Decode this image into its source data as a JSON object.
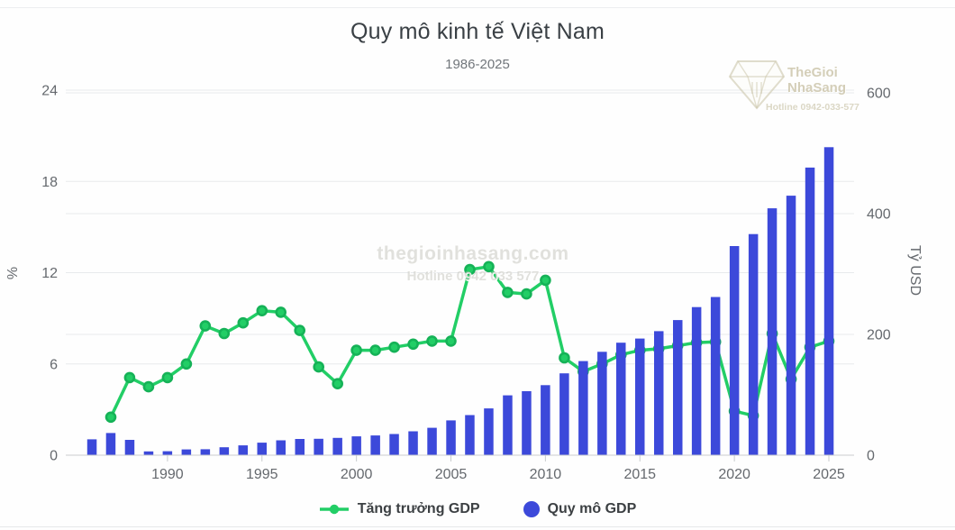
{
  "header": {
    "title": "Quy mô kinh tế Việt Nam",
    "subtitle": "1986-2025"
  },
  "legend": [
    {
      "label": "Tăng trưởng GDP",
      "type": "line-marker",
      "color": "#22ce66"
    },
    {
      "label": "Quy mô GDP",
      "type": "circle",
      "color": "#3c49da"
    }
  ],
  "watermark_center": {
    "line1": "thegioinhasang.com",
    "line2": "Hotline 0942 033 577"
  },
  "watermark_logo": {
    "name1": "TheGioi",
    "name2": "NhaSang",
    "hotline": "Hotline 0942-033-577"
  },
  "colors": {
    "line": "#22ce66",
    "line_marker_stroke": "#15b257",
    "bar": "#3c49da",
    "grid": "#e8eaec",
    "axis_line": "#c9ccce",
    "tick_text": "#65696e",
    "title_text": "#3a4045",
    "subtitle_text": "#71767b",
    "legend_text": "#3c4043",
    "watermark": "#ccc6ac"
  },
  "chart_data": {
    "type": "combo-bar-line",
    "title": "Quy mô kinh tế Việt Nam",
    "subtitle": "1986-2025",
    "grid": true,
    "legend_position": "bottom",
    "x": [
      1986,
      1987,
      1988,
      1989,
      1990,
      1991,
      1992,
      1993,
      1994,
      1995,
      1996,
      1997,
      1998,
      1999,
      2000,
      2001,
      2002,
      2003,
      2004,
      2005,
      2006,
      2007,
      2008,
      2009,
      2010,
      2011,
      2012,
      2013,
      2014,
      2015,
      2016,
      2017,
      2018,
      2019,
      2020,
      2021,
      2022,
      2023,
      2024,
      2025
    ],
    "x_ticks": [
      1990,
      1995,
      2000,
      2005,
      2010,
      2015,
      2020,
      2025
    ],
    "left_axis": {
      "label": "%",
      "ticks": [
        0,
        6,
        12,
        18,
        24
      ],
      "range": [
        0,
        24
      ]
    },
    "right_axis": {
      "label": "Tỷ USD",
      "ticks": [
        0,
        200,
        400,
        600
      ],
      "range": [
        0,
        600
      ]
    },
    "series": [
      {
        "name": "Tăng trưởng GDP",
        "type": "line",
        "axis": "left",
        "unit": "%",
        "color": "#22ce66",
        "values": [
          null,
          2.5,
          5.1,
          4.5,
          5.1,
          6.0,
          8.5,
          8.0,
          8.7,
          9.5,
          9.4,
          8.2,
          5.8,
          4.7,
          6.9,
          6.9,
          7.1,
          7.3,
          7.5,
          7.5,
          12.2,
          12.4,
          10.7,
          10.6,
          11.5,
          6.4,
          5.5,
          6.0,
          6.6,
          6.9,
          7.0,
          7.2,
          7.4,
          7.45,
          2.9,
          2.6,
          8.0,
          5.0,
          7.1,
          7.5
        ]
      },
      {
        "name": "Quy mô GDP",
        "type": "bar",
        "axis": "right",
        "unit": "Tỷ USD",
        "color": "#3c49da",
        "values": [
          26.3,
          36.7,
          25.4,
          6.3,
          6.5,
          9.6,
          9.9,
          13.2,
          16.3,
          20.7,
          24.7,
          26.8,
          27.2,
          28.7,
          31.2,
          32.7,
          35.1,
          39.6,
          45.4,
          57.6,
          66.4,
          77.4,
          99.1,
          106.0,
          115.9,
          135.5,
          155.8,
          171.2,
          186.2,
          193.2,
          205.3,
          223.8,
          245.2,
          261.9,
          346.3,
          366.1,
          408.8,
          429.7,
          476.3,
          510.0
        ]
      }
    ]
  }
}
